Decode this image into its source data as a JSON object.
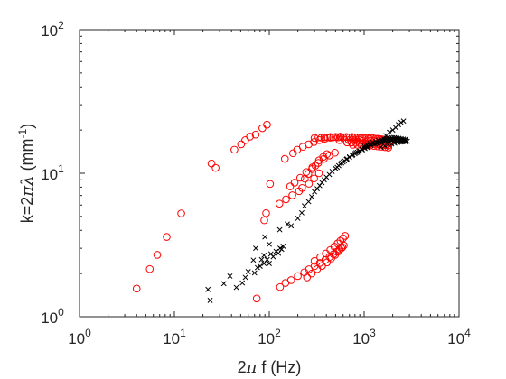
{
  "chart_data": {
    "type": "scatter",
    "xscale": "log",
    "yscale": "log",
    "xlim": [
      1,
      10000
    ],
    "ylim": [
      1,
      100
    ],
    "grid": false,
    "xlabel": {
      "pre": "2",
      "greek": "π",
      "post": " f (Hz)"
    },
    "ylabel": {
      "pre": "k=2",
      "greek": "πλ",
      "post": " (mm",
      "sup": "-1",
      "close": ")"
    },
    "x_ticks": [
      {
        "value": 1,
        "base": "10",
        "exp": "0"
      },
      {
        "value": 10,
        "base": "10",
        "exp": "1"
      },
      {
        "value": 100,
        "base": "10",
        "exp": "2"
      },
      {
        "value": 1000,
        "base": "10",
        "exp": "3"
      },
      {
        "value": 10000,
        "base": "10",
        "exp": "4"
      }
    ],
    "y_ticks": [
      {
        "value": 1,
        "base": "10",
        "exp": "0"
      },
      {
        "value": 10,
        "base": "10",
        "exp": "1"
      },
      {
        "value": 100,
        "base": "10",
        "exp": "2"
      }
    ],
    "series": [
      {
        "marker": "circle",
        "color": "#ff0000",
        "points": [
          [
            4.0,
            1.57
          ],
          [
            5.5,
            2.15
          ],
          [
            6.6,
            2.7
          ],
          [
            8.3,
            3.6
          ],
          [
            11.8,
            5.25
          ],
          [
            24.6,
            11.7
          ],
          [
            27.2,
            10.9
          ],
          [
            42.9,
            14.6
          ],
          [
            50.5,
            15.9
          ],
          [
            55.8,
            17.0
          ],
          [
            62.6,
            18.0
          ],
          [
            71.8,
            18.6
          ],
          [
            84.6,
            20.6
          ],
          [
            94.6,
            21.8
          ],
          [
            88.6,
            4.7
          ],
          [
            92.6,
            5.27
          ],
          [
            102,
            8.42
          ],
          [
            73.8,
            1.34
          ],
          [
            130,
            1.61
          ],
          [
            148,
            1.72
          ],
          [
            170,
            1.8
          ],
          [
            200,
            1.92
          ],
          [
            234,
            2.04
          ],
          [
            262,
            2.14
          ],
          [
            300,
            2.25
          ],
          [
            341,
            2.37
          ],
          [
            390,
            2.49
          ],
          [
            432,
            2.61
          ],
          [
            476,
            2.73
          ],
          [
            514,
            2.84
          ],
          [
            551,
            2.95
          ],
          [
            590,
            3.05
          ],
          [
            250,
            1.88
          ],
          [
            280,
            2.0
          ],
          [
            320,
            2.15
          ],
          [
            360,
            2.26
          ],
          [
            405,
            2.39
          ],
          [
            450,
            2.55
          ],
          [
            495,
            2.7
          ],
          [
            540,
            2.86
          ],
          [
            575,
            3.0
          ],
          [
            610,
            3.14
          ],
          [
            300,
            2.45
          ],
          [
            345,
            2.6
          ],
          [
            395,
            2.76
          ],
          [
            440,
            2.92
          ],
          [
            485,
            3.08
          ],
          [
            525,
            3.24
          ],
          [
            562,
            3.38
          ],
          [
            598,
            3.52
          ],
          [
            630,
            3.66
          ],
          [
            128,
            6.14
          ],
          [
            150,
            6.58
          ],
          [
            175,
            7.02
          ],
          [
            206,
            7.5
          ],
          [
            222,
            7.9
          ],
          [
            262,
            8.45
          ],
          [
            297,
            9.2
          ],
          [
            334,
            10.0
          ],
          [
            166,
            8.1
          ],
          [
            185,
            8.6
          ],
          [
            212,
            9.3
          ],
          [
            245,
            10.2
          ],
          [
            285,
            11.0
          ],
          [
            328,
            11.8
          ],
          [
            376,
            12.6
          ],
          [
            430,
            13.3
          ],
          [
            492,
            13.9
          ],
          [
            237,
            9.15
          ],
          [
            258,
            9.9
          ],
          [
            282,
            10.7
          ],
          [
            306,
            11.3
          ],
          [
            334,
            12.3
          ],
          [
            370,
            13.0
          ],
          [
            405,
            13.6
          ],
          [
            146,
            12.6
          ],
          [
            178,
            13.8
          ],
          [
            197,
            14.6
          ],
          [
            226,
            15.3
          ],
          [
            260,
            15.9
          ],
          [
            296,
            16.5
          ],
          [
            338,
            17.0
          ],
          [
            386,
            17.4
          ],
          [
            440,
            17.7
          ],
          [
            500,
            17.9
          ],
          [
            560,
            18.0
          ],
          [
            300,
            17.6
          ],
          [
            330,
            17.8
          ],
          [
            355,
            17.7
          ],
          [
            380,
            17.8
          ],
          [
            410,
            17.8
          ],
          [
            440,
            17.9
          ],
          [
            470,
            17.8
          ],
          [
            500,
            17.9
          ],
          [
            530,
            17.8
          ],
          [
            570,
            17.9
          ],
          [
            600,
            17.8
          ],
          [
            650,
            17.9
          ],
          [
            700,
            17.8
          ],
          [
            750,
            17.9
          ],
          [
            800,
            17.8
          ],
          [
            850,
            17.8
          ],
          [
            900,
            17.7
          ],
          [
            950,
            17.8
          ],
          [
            1000,
            17.6
          ],
          [
            1060,
            17.7
          ],
          [
            1120,
            17.5
          ],
          [
            1180,
            17.6
          ],
          [
            1250,
            17.5
          ],
          [
            1320,
            17.4
          ],
          [
            1400,
            17.4
          ],
          [
            1480,
            17.3
          ],
          [
            1560,
            17.2
          ],
          [
            1650,
            17.1
          ],
          [
            1750,
            17.0
          ],
          [
            1850,
            16.9
          ],
          [
            550,
            17.0
          ],
          [
            620,
            17.1
          ],
          [
            690,
            17.0
          ],
          [
            760,
            17.1
          ],
          [
            830,
            17.0
          ],
          [
            910,
            17.0
          ],
          [
            990,
            16.9
          ],
          [
            1080,
            16.9
          ],
          [
            1170,
            16.8
          ],
          [
            1270,
            16.8
          ],
          [
            1370,
            16.7
          ],
          [
            1480,
            16.6
          ],
          [
            1600,
            16.5
          ],
          [
            1720,
            16.4
          ],
          [
            1850,
            16.3
          ],
          [
            660,
            16.4
          ],
          [
            740,
            16.4
          ],
          [
            820,
            16.3
          ],
          [
            900,
            16.3
          ],
          [
            990,
            16.2
          ],
          [
            1090,
            16.1
          ],
          [
            1190,
            16.1
          ],
          [
            1300,
            16.0
          ],
          [
            1420,
            15.9
          ],
          [
            1540,
            15.8
          ],
          [
            1670,
            15.7
          ],
          [
            1800,
            15.6
          ],
          [
            760,
            15.8
          ],
          [
            850,
            15.8
          ],
          [
            940,
            15.7
          ],
          [
            1040,
            15.6
          ],
          [
            1150,
            15.6
          ],
          [
            1270,
            15.5
          ],
          [
            1390,
            15.4
          ],
          [
            1520,
            15.3
          ],
          [
            1660,
            15.2
          ],
          [
            1800,
            15.1
          ]
        ]
      },
      {
        "marker": "cross",
        "color": "#000000",
        "points": [
          [
            22.6,
            1.55
          ],
          [
            23.8,
            1.3
          ],
          [
            33.2,
            1.7
          ],
          [
            38.5,
            1.92
          ],
          [
            45.0,
            1.6
          ],
          [
            52.0,
            1.72
          ],
          [
            56.0,
            1.88
          ],
          [
            60.0,
            2.06
          ],
          [
            70.0,
            2.02
          ],
          [
            75.0,
            2.2
          ],
          [
            80.0,
            2.25
          ],
          [
            88.0,
            2.35
          ],
          [
            95.0,
            2.5
          ],
          [
            100,
            2.35
          ],
          [
            104,
            2.74
          ],
          [
            110,
            2.62
          ],
          [
            118,
            2.85
          ],
          [
            125,
            2.77
          ],
          [
            130,
            3.0
          ],
          [
            135,
            2.95
          ],
          [
            140,
            3.1
          ],
          [
            90,
            3.6
          ],
          [
            88,
            2.68
          ],
          [
            72,
            3.0
          ],
          [
            68,
            2.48
          ],
          [
            83,
            2.5
          ],
          [
            100,
            3.2
          ],
          [
            129,
            4.04
          ],
          [
            155,
            4.42
          ],
          [
            170,
            4.3
          ],
          [
            200,
            4.85
          ],
          [
            220,
            5.3
          ],
          [
            235,
            5.92
          ],
          [
            260,
            6.34
          ],
          [
            280,
            6.86
          ],
          [
            300,
            7.42
          ],
          [
            320,
            7.8
          ],
          [
            340,
            8.2
          ],
          [
            360,
            8.6
          ],
          [
            380,
            9.0
          ],
          [
            400,
            9.4
          ],
          [
            430,
            9.8
          ],
          [
            460,
            10.3
          ],
          [
            500,
            10.8
          ],
          [
            540,
            11.3
          ],
          [
            580,
            11.8
          ],
          [
            620,
            12.2
          ],
          [
            660,
            12.6
          ],
          [
            700,
            12.9
          ],
          [
            750,
            13.3
          ],
          [
            800,
            13.7
          ],
          [
            850,
            14.0
          ],
          [
            900,
            14.3
          ],
          [
            960,
            14.6
          ],
          [
            1020,
            14.9
          ],
          [
            1080,
            15.1
          ],
          [
            520,
            11.0
          ],
          [
            560,
            11.6
          ],
          [
            600,
            12.0
          ],
          [
            650,
            12.5
          ],
          [
            700,
            13.0
          ],
          [
            760,
            13.5
          ],
          [
            820,
            13.9
          ],
          [
            880,
            14.2
          ],
          [
            950,
            14.6
          ],
          [
            1020,
            14.9
          ],
          [
            1100,
            15.3
          ],
          [
            1180,
            15.6
          ],
          [
            1260,
            15.9
          ],
          [
            1350,
            16.2
          ],
          [
            1440,
            16.5
          ],
          [
            1540,
            16.7
          ],
          [
            1640,
            16.9
          ],
          [
            1750,
            17.1
          ],
          [
            1860,
            17.2
          ],
          [
            1980,
            17.3
          ],
          [
            2100,
            17.3
          ],
          [
            2220,
            17.3
          ],
          [
            2350,
            17.2
          ],
          [
            2480,
            17.1
          ],
          [
            2600,
            17.0
          ],
          [
            2720,
            16.9
          ],
          [
            1000,
            15.5
          ],
          [
            1080,
            15.8
          ],
          [
            1160,
            16.1
          ],
          [
            1240,
            16.4
          ],
          [
            1330,
            16.6
          ],
          [
            1420,
            16.9
          ],
          [
            1520,
            17.1
          ],
          [
            1620,
            17.3
          ],
          [
            1730,
            17.5
          ],
          [
            1840,
            17.6
          ],
          [
            1960,
            17.7
          ],
          [
            2080,
            17.7
          ],
          [
            2200,
            17.6
          ],
          [
            2320,
            17.5
          ],
          [
            2450,
            17.4
          ],
          [
            2580,
            17.3
          ],
          [
            2700,
            17.2
          ],
          [
            1300,
            16.0
          ],
          [
            1400,
            16.3
          ],
          [
            1500,
            16.5
          ],
          [
            1600,
            16.7
          ],
          [
            1700,
            16.9
          ],
          [
            1800,
            17.0
          ],
          [
            1900,
            17.1
          ],
          [
            2000,
            17.1
          ],
          [
            2100,
            17.0
          ],
          [
            2200,
            16.9
          ],
          [
            2300,
            16.8
          ],
          [
            2400,
            16.7
          ],
          [
            2500,
            16.6
          ],
          [
            1700,
            18.3
          ],
          [
            1850,
            19.3
          ],
          [
            2000,
            20.0
          ],
          [
            2150,
            20.8
          ],
          [
            2300,
            21.8
          ],
          [
            2450,
            22.6
          ],
          [
            2600,
            23.1
          ],
          [
            1500,
            15.2
          ],
          [
            1650,
            15.5
          ],
          [
            1800,
            15.8
          ],
          [
            1950,
            16.0
          ],
          [
            2100,
            16.2
          ],
          [
            2250,
            16.4
          ],
          [
            2400,
            16.5
          ],
          [
            2550,
            16.6
          ],
          [
            2700,
            16.6
          ],
          [
            2850,
            16.7
          ]
        ]
      }
    ]
  }
}
